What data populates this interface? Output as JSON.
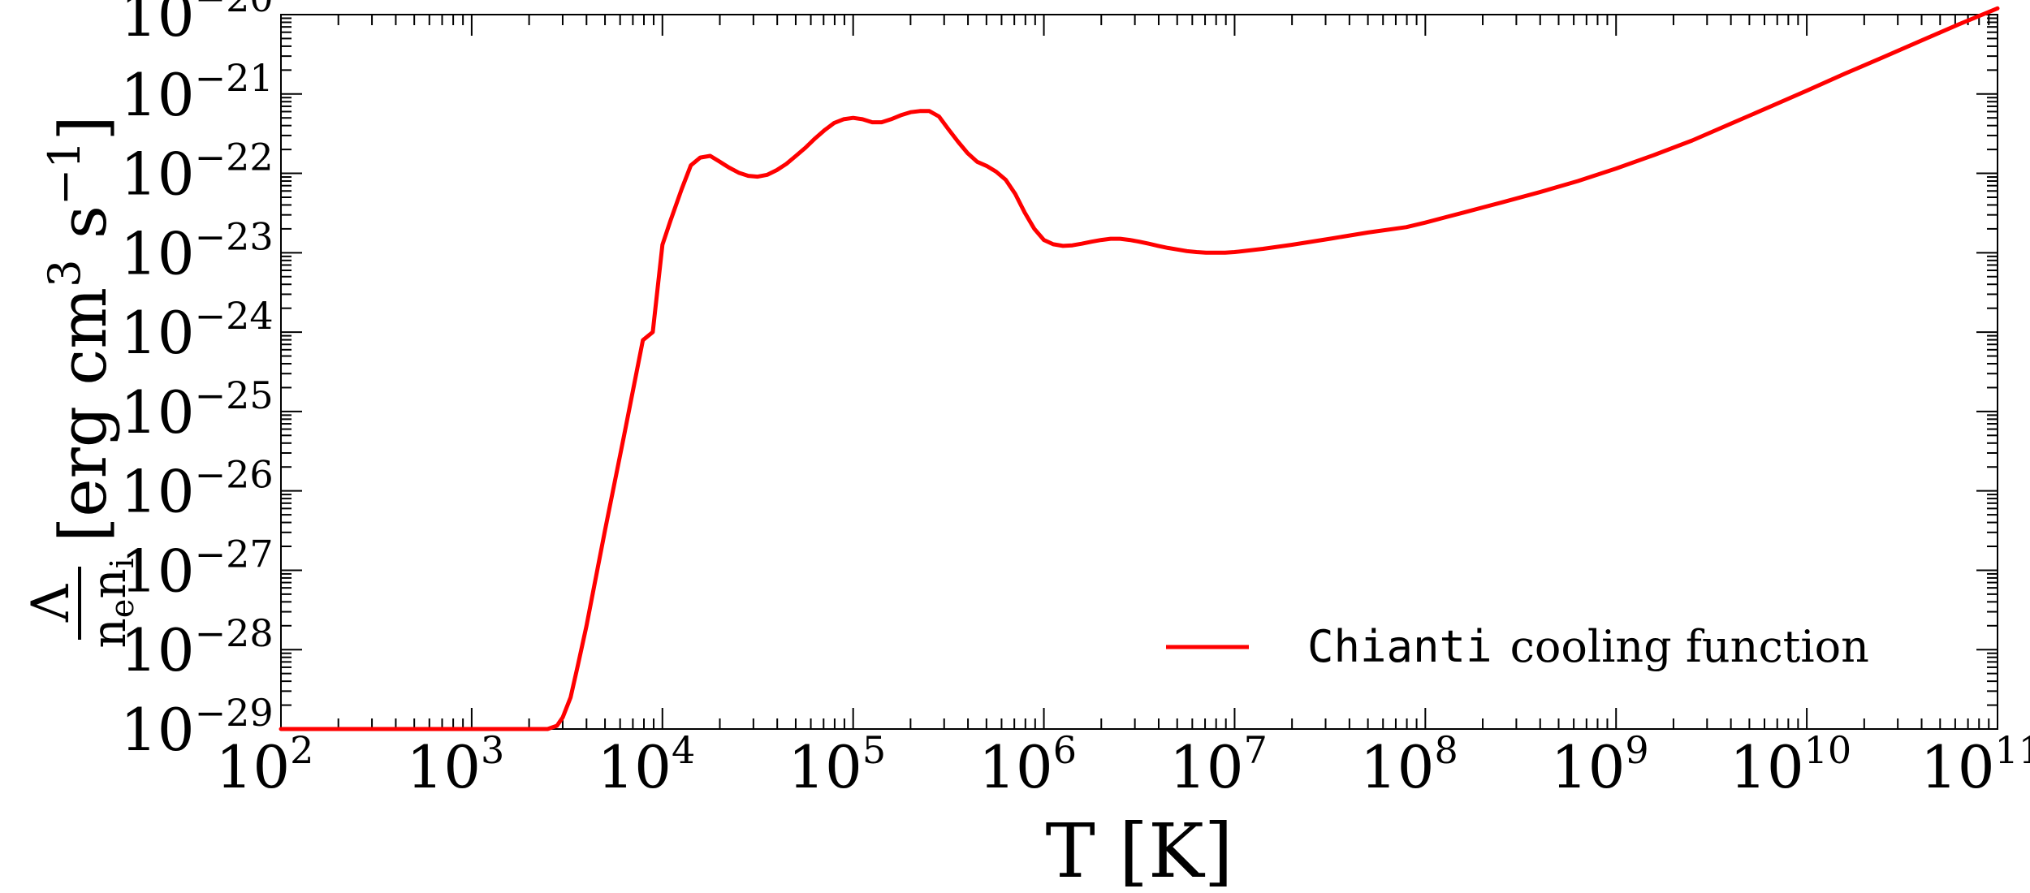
{
  "chart_data": {
    "type": "line",
    "xscale": "log",
    "yscale": "log",
    "xlim": [
      100,
      100000000000
    ],
    "ylim": [
      1e-29,
      1e-20
    ],
    "grid": false,
    "legend_placement": "bottom-right",
    "xlabel": "T [K]",
    "ylabel": {
      "fraction_numerator": "Λ",
      "fraction_denominator_base": "n",
      "fraction_denominator_sub1": "e",
      "fraction_denominator_base2": "n",
      "fraction_denominator_sub2": "i",
      "units_open": "[erg cm",
      "units_exp1": "3",
      "units_mid": " s",
      "units_exp2": "−1",
      "units_close": "]"
    },
    "x_ticks": [
      {
        "base": "10",
        "exp": "2",
        "value": 100
      },
      {
        "base": "10",
        "exp": "3",
        "value": 1000
      },
      {
        "base": "10",
        "exp": "4",
        "value": 10000
      },
      {
        "base": "10",
        "exp": "5",
        "value": 100000
      },
      {
        "base": "10",
        "exp": "6",
        "value": 1000000
      },
      {
        "base": "10",
        "exp": "7",
        "value": 10000000
      },
      {
        "base": "10",
        "exp": "8",
        "value": 100000000
      },
      {
        "base": "10",
        "exp": "9",
        "value": 1000000000
      },
      {
        "base": "10",
        "exp": "10",
        "value": 10000000000
      },
      {
        "base": "10",
        "exp": "11",
        "value": 100000000000
      }
    ],
    "y_ticks": [
      {
        "base": "10",
        "exp": "−29",
        "value": 1e-29
      },
      {
        "base": "10",
        "exp": "−28",
        "value": 1e-28
      },
      {
        "base": "10",
        "exp": "−27",
        "value": 1e-27
      },
      {
        "base": "10",
        "exp": "−26",
        "value": 1e-26
      },
      {
        "base": "10",
        "exp": "−25",
        "value": 1e-25
      },
      {
        "base": "10",
        "exp": "−24",
        "value": 1e-24
      },
      {
        "base": "10",
        "exp": "−23",
        "value": 1e-23
      },
      {
        "base": "10",
        "exp": "−22",
        "value": 1e-22
      },
      {
        "base": "10",
        "exp": "−21",
        "value": 1e-21
      },
      {
        "base": "10",
        "exp": "−20",
        "value": 1e-20
      }
    ],
    "series": [
      {
        "name_mono": "Chianti",
        "name_rest": "cooling function",
        "color": "#ff0000",
        "x": [
          100,
          2500,
          2800,
          3000,
          3300,
          3600,
          4000,
          5000,
          6300,
          7900,
          8900,
          10000,
          11000,
          12600,
          14100,
          15800,
          17800,
          20000,
          22400,
          25100,
          28200,
          31600,
          35500,
          39800,
          44700,
          50100,
          56200,
          63100,
          70800,
          79400,
          89100,
          100000,
          112000,
          126000,
          141000,
          158000,
          178000,
          200000,
          224000,
          251000,
          282000,
          316000,
          355000,
          398000,
          447000,
          501000,
          562000,
          631000,
          708000,
          794000,
          891000,
          1000000,
          1120000,
          1260000,
          1410000,
          1580000,
          1780000,
          2000000,
          2240000,
          2510000,
          2820000,
          3160000,
          3550000,
          3980000,
          4470000,
          5010000,
          5620000,
          6310000,
          7080000,
          7940000,
          8910000,
          10000000,
          14100000,
          20000000,
          31600000,
          50100000,
          79400000,
          100000000,
          158000000,
          251000000,
          398000000,
          631000000,
          1000000000,
          1580000000,
          2510000000,
          3980000000,
          6310000000,
          10000000000,
          15800000000,
          25100000000,
          39800000000,
          63100000000,
          100000000000
        ],
        "y": [
          1e-29,
          1e-29,
          1.1e-29,
          1.4e-29,
          2.5e-29,
          6.3e-29,
          2e-28,
          3.2e-27,
          5e-26,
          7.9e-25,
          1e-24,
          1.26e-23,
          2.5e-23,
          6.3e-23,
          1.26e-22,
          1.58e-22,
          1.66e-22,
          1.4e-22,
          1.18e-22,
          1.02e-22,
          9.3e-23,
          9.1e-23,
          9.6e-23,
          1.1e-22,
          1.32e-22,
          1.66e-22,
          2.1e-22,
          2.75e-22,
          3.5e-22,
          4.3e-22,
          4.8e-22,
          5e-22,
          4.8e-22,
          4.4e-22,
          4.4e-22,
          4.8e-22,
          5.4e-22,
          5.9e-22,
          6.1e-22,
          6.1e-22,
          5.2e-22,
          3.6e-22,
          2.5e-22,
          1.8e-22,
          1.4e-22,
          1.24e-22,
          1.05e-22,
          8.3e-23,
          5.5e-23,
          3.2e-23,
          2e-23,
          1.45e-23,
          1.28e-23,
          1.22e-23,
          1.24e-23,
          1.3e-23,
          1.38e-23,
          1.45e-23,
          1.5e-23,
          1.5e-23,
          1.45e-23,
          1.38e-23,
          1.3e-23,
          1.22e-23,
          1.15e-23,
          1.1e-23,
          1.05e-23,
          1.02e-23,
          1e-23,
          1e-23,
          1e-23,
          1.02e-23,
          1.12e-23,
          1.26e-23,
          1.5e-23,
          1.8e-23,
          2.1e-23,
          2.4e-23,
          3.2e-23,
          4.3e-23,
          5.8e-23,
          8e-23,
          1.15e-22,
          1.7e-22,
          2.6e-22,
          4.2e-22,
          6.8e-22,
          1.1e-21,
          1.8e-21,
          2.9e-21,
          4.7e-21,
          7.6e-21,
          1.2e-20
        ]
      }
    ]
  }
}
